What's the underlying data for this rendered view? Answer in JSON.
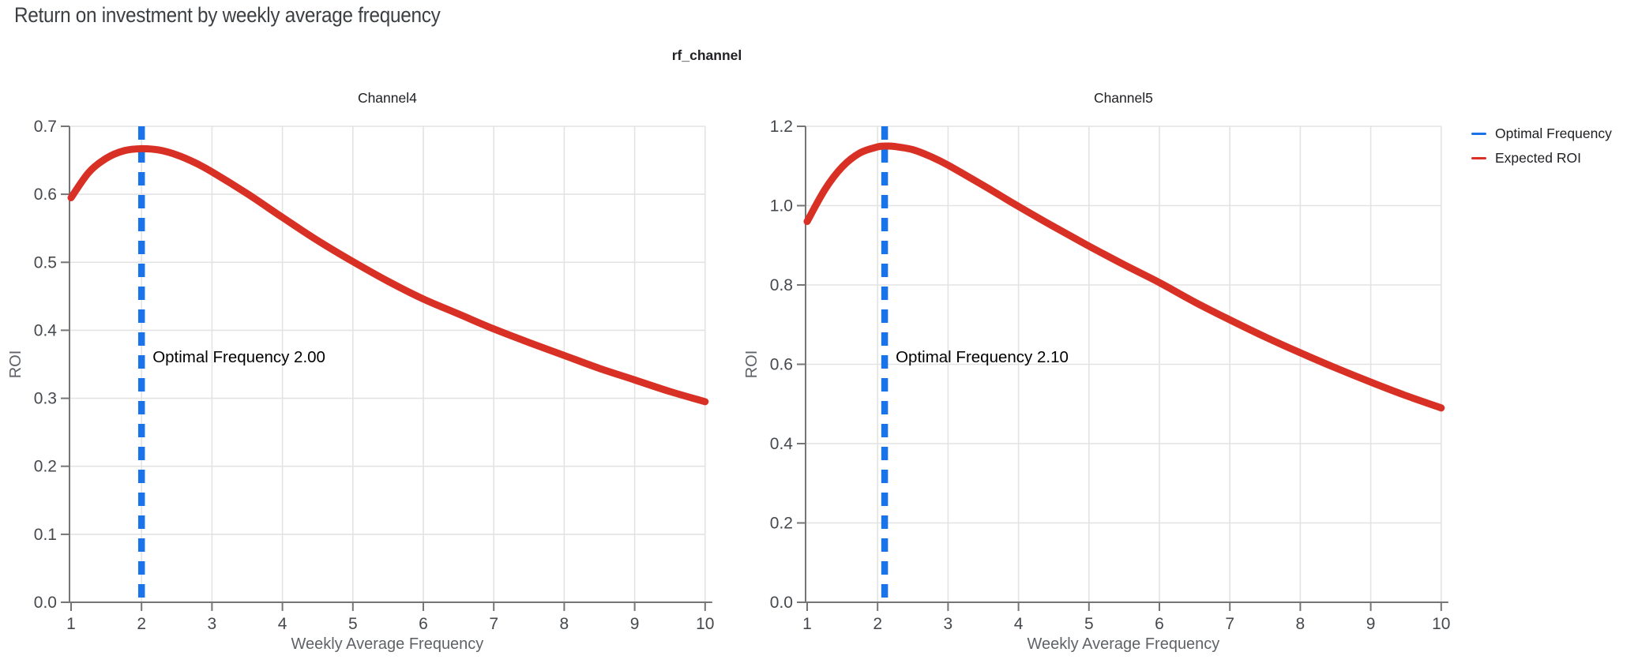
{
  "page": {
    "title": "Return on investment by weekly average frequency",
    "facet_label": "rf_channel"
  },
  "legend": {
    "items": [
      {
        "label": "Optimal Frequency",
        "color": "#1a73e8"
      },
      {
        "label": "Expected ROI",
        "color": "#d93025"
      }
    ]
  },
  "colors": {
    "optimal_line": "#1a73e8",
    "roi_line": "#d93025",
    "grid": "#e3e3e3",
    "axis": "#757575",
    "tick_label": "#45494d",
    "axis_title": "#5f6368",
    "chart_title": "#202124",
    "annotation": "#000000",
    "page_title": "#3c4043"
  },
  "chart_data": [
    {
      "type": "line",
      "title": "Channel4",
      "xlabel": "Weekly Average Frequency",
      "ylabel": "ROI",
      "xlim": [
        1,
        10
      ],
      "ylim": [
        0.0,
        0.7
      ],
      "xticks": [
        1,
        2,
        3,
        4,
        5,
        6,
        7,
        8,
        9,
        10
      ],
      "xtick_labels": [
        "1",
        "2",
        "3",
        "4",
        "5",
        "6",
        "7",
        "8",
        "9",
        "10"
      ],
      "yticks": [
        0.0,
        0.1,
        0.2,
        0.3,
        0.4,
        0.5,
        0.6,
        0.7
      ],
      "ytick_labels": [
        "0.0",
        "0.1",
        "0.2",
        "0.3",
        "0.4",
        "0.5",
        "0.6",
        "0.7"
      ],
      "grid": true,
      "optimal_frequency": 2.0,
      "annotation": "Optimal Frequency  2.00",
      "series": [
        {
          "name": "Expected ROI",
          "x": [
            1,
            1.25,
            1.5,
            1.75,
            2,
            2.25,
            2.5,
            2.75,
            3,
            3.5,
            4,
            4.5,
            5,
            5.5,
            6,
            6.5,
            7,
            7.5,
            8,
            8.5,
            9,
            9.5,
            10
          ],
          "y": [
            0.595,
            0.632,
            0.653,
            0.664,
            0.667,
            0.665,
            0.658,
            0.647,
            0.633,
            0.601,
            0.566,
            0.532,
            0.501,
            0.472,
            0.446,
            0.424,
            0.402,
            0.382,
            0.363,
            0.344,
            0.327,
            0.31,
            0.295
          ]
        }
      ]
    },
    {
      "type": "line",
      "title": "Channel5",
      "xlabel": "Weekly Average Frequency",
      "ylabel": "ROI",
      "xlim": [
        1,
        10
      ],
      "ylim": [
        0.0,
        1.2
      ],
      "xticks": [
        1,
        2,
        3,
        4,
        5,
        6,
        7,
        8,
        9,
        10
      ],
      "xtick_labels": [
        "1",
        "2",
        "3",
        "4",
        "5",
        "6",
        "7",
        "8",
        "9",
        "10"
      ],
      "yticks": [
        0.0,
        0.2,
        0.4,
        0.6,
        0.8,
        1.0,
        1.2
      ],
      "ytick_labels": [
        "0.0",
        "0.2",
        "0.4",
        "0.6",
        "0.8",
        "1.0",
        "1.2"
      ],
      "grid": true,
      "optimal_frequency": 2.1,
      "annotation": "Optimal Frequency  2.10",
      "series": [
        {
          "name": "Expected ROI",
          "x": [
            1,
            1.25,
            1.5,
            1.75,
            2,
            2.1,
            2.25,
            2.5,
            2.75,
            3,
            3.5,
            4,
            4.5,
            5,
            5.5,
            6,
            6.5,
            7,
            7.5,
            8,
            8.5,
            9,
            9.5,
            10
          ],
          "y": [
            0.96,
            1.04,
            1.098,
            1.133,
            1.148,
            1.15,
            1.149,
            1.141,
            1.124,
            1.102,
            1.051,
            0.998,
            0.947,
            0.898,
            0.851,
            0.806,
            0.757,
            0.712,
            0.669,
            0.629,
            0.591,
            0.555,
            0.521,
            0.49
          ]
        }
      ]
    }
  ]
}
